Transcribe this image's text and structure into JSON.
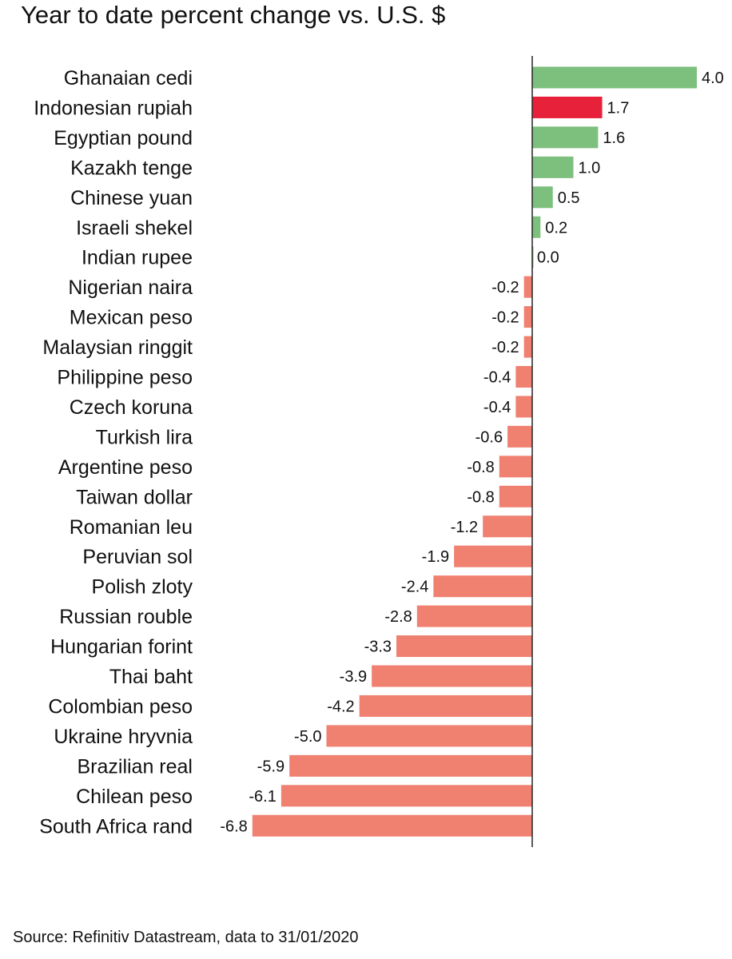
{
  "chart_data": {
    "type": "bar",
    "orientation": "horizontal",
    "title": "Year to date percent change vs. U.S. $",
    "source": "Source: Refinitiv Datastream, data to 31/01/2020",
    "categories": [
      "Ghanaian cedi",
      "Indonesian rupiah",
      "Egyptian pound",
      "Kazakh tenge",
      "Chinese yuan",
      "Israeli shekel",
      "Indian rupee",
      "Nigerian naira",
      "Mexican peso",
      "Malaysian ringgit",
      "Philippine peso",
      "Czech koruna",
      "Turkish lira",
      "Argentine peso",
      "Taiwan dollar",
      "Romanian leu",
      "Peruvian sol",
      "Polish zloty",
      "Russian rouble",
      "Hungarian forint",
      "Thai baht",
      "Colombian peso",
      "Ukraine hryvnia",
      "Brazilian real",
      "Chilean peso",
      "South Africa rand"
    ],
    "values": [
      4.0,
      1.7,
      1.6,
      1.0,
      0.5,
      0.2,
      0.0,
      -0.2,
      -0.2,
      -0.2,
      -0.4,
      -0.4,
      -0.6,
      -0.8,
      -0.8,
      -1.2,
      -1.9,
      -2.4,
      -2.8,
      -3.3,
      -3.9,
      -4.2,
      -5.0,
      -5.9,
      -6.1,
      -6.8
    ],
    "value_labels": [
      "4.0",
      "1.7",
      "1.6",
      "1.0",
      "0.5",
      "0.2",
      "0.0",
      "-0.2",
      "-0.2",
      "-0.2",
      "-0.4",
      "-0.4",
      "-0.6",
      "-0.8",
      "-0.8",
      "-1.2",
      "-1.9",
      "-2.4",
      "-2.8",
      "-3.3",
      "-3.9",
      "-4.2",
      "-5.0",
      "-5.9",
      "-6.1",
      "-6.8"
    ],
    "highlight": "Indonesian rupiah",
    "xlim": [
      -6.8,
      4.0
    ],
    "grid": false,
    "colors": {
      "positive": "#7dbf7d",
      "negative": "#f08070",
      "highlight": "#e8213a",
      "axis": "#222222",
      "text": "#111111"
    }
  }
}
